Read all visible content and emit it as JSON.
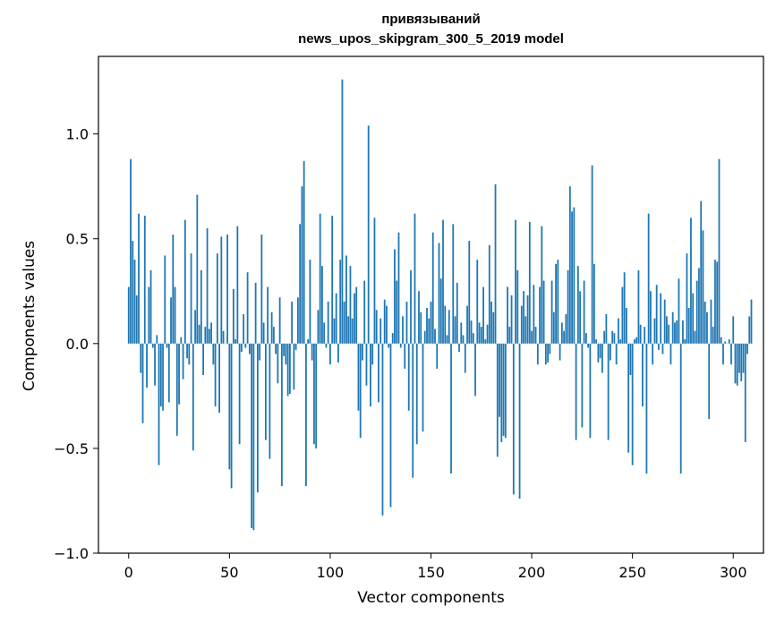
{
  "chart_data": {
    "type": "bar",
    "title": "привязываний",
    "subtitle": "news_upos_skipgram_300_5_2019 model",
    "xlabel": "Vector components",
    "ylabel": "Components values",
    "xlim": [
      -15,
      315
    ],
    "ylim": [
      -1.0,
      1.37
    ],
    "xticks": [
      0,
      50,
      100,
      150,
      200,
      250,
      300
    ],
    "yticks": [
      -1.0,
      -0.5,
      0.0,
      0.5,
      1.0
    ],
    "xtick_labels": [
      "0",
      "50",
      "100",
      "150",
      "200",
      "250",
      "300"
    ],
    "ytick_labels": [
      "−1.0",
      "−0.5",
      "0.0",
      "0.5",
      "1.0"
    ],
    "grid": false,
    "bar_color": "#1f77b4",
    "values": [
      0.27,
      0.88,
      0.49,
      0.4,
      0.23,
      0.62,
      -0.14,
      -0.38,
      0.61,
      -0.21,
      0.27,
      0.35,
      -0.02,
      -0.2,
      0.04,
      -0.58,
      -0.3,
      -0.32,
      0.42,
      -0.02,
      -0.28,
      0.22,
      0.52,
      0.27,
      -0.44,
      -0.29,
      0.03,
      -0.17,
      0.59,
      -0.07,
      -0.1,
      0.43,
      -0.51,
      0.16,
      0.71,
      0.09,
      0.35,
      -0.15,
      0.08,
      0.55,
      0.07,
      0.1,
      -0.1,
      -0.3,
      0.43,
      -0.33,
      0.51,
      0.06,
      0.0,
      0.52,
      -0.6,
      -0.69,
      0.26,
      0.02,
      0.56,
      -0.48,
      -0.04,
      0.14,
      -0.02,
      0.34,
      -0.05,
      -0.88,
      -0.89,
      0.29,
      -0.71,
      -0.08,
      0.52,
      0.1,
      -0.46,
      0.27,
      -0.55,
      0.15,
      0.08,
      -0.05,
      -0.19,
      0.22,
      -0.68,
      -0.06,
      -0.1,
      -0.25,
      -0.24,
      0.2,
      -0.22,
      -0.03,
      0.22,
      0.57,
      0.75,
      0.87,
      -0.68,
      0.02,
      0.4,
      -0.08,
      -0.48,
      -0.5,
      0.16,
      0.62,
      0.37,
      0.1,
      -0.02,
      0.2,
      -0.1,
      0.61,
      0.12,
      0.24,
      -0.09,
      0.4,
      1.26,
      0.2,
      0.42,
      0.13,
      0.37,
      0.12,
      0.24,
      0.27,
      -0.32,
      -0.45,
      -0.08,
      0.3,
      -0.2,
      1.04,
      -0.3,
      -0.1,
      0.6,
      0.16,
      -0.28,
      0.12,
      -0.82,
      0.21,
      0.18,
      -0.02,
      -0.78,
      0.05,
      0.45,
      0.3,
      0.53,
      -0.02,
      0.13,
      -0.12,
      0.2,
      -0.32,
      0.35,
      -0.64,
      0.62,
      -0.48,
      0.25,
      0.15,
      -0.42,
      0.06,
      0.17,
      0.12,
      0.2,
      0.53,
      0.07,
      -0.12,
      0.48,
      0.31,
      0.59,
      0.18,
      0.04,
      0.16,
      -0.62,
      0.57,
      0.13,
      0.29,
      -0.04,
      0.1,
      0.04,
      -0.14,
      0.18,
      0.49,
      0.11,
      0.05,
      -0.25,
      0.4,
      0.1,
      0.08,
      0.27,
      0.02,
      0.09,
      0.47,
      0.2,
      0.15,
      0.76,
      -0.54,
      -0.35,
      -0.47,
      -0.44,
      -0.45,
      0.27,
      0.08,
      0.23,
      -0.72,
      0.59,
      0.35,
      -0.74,
      0.18,
      0.25,
      0.13,
      0.23,
      0.58,
      0.06,
      0.28,
      0.08,
      -0.1,
      0.27,
      0.56,
      0.3,
      -0.1,
      -0.09,
      -0.05,
      0.3,
      0.15,
      0.38,
      0.4,
      -0.08,
      0.1,
      0.06,
      0.14,
      0.35,
      0.75,
      0.63,
      0.65,
      -0.46,
      0.37,
      0.25,
      -0.4,
      0.3,
      0.05,
      -0.02,
      -0.45,
      0.85,
      0.38,
      0.02,
      -0.09,
      -0.07,
      -0.14,
      0.06,
      0.14,
      -0.46,
      -0.08,
      0.06,
      0.05,
      -0.1,
      0.12,
      0.02,
      0.27,
      0.34,
      0.17,
      -0.52,
      -0.15,
      -0.58,
      0.02,
      0.03,
      0.35,
      0.09,
      -0.3,
      0.08,
      -0.62,
      0.62,
      0.25,
      -0.1,
      0.12,
      0.28,
      -0.03,
      0.24,
      -0.05,
      0.21,
      0.13,
      0.09,
      -0.1,
      0.15,
      0.1,
      0.11,
      0.31,
      -0.62,
      0.11,
      0.02,
      0.43,
      0.17,
      0.6,
      0.24,
      0.06,
      0.3,
      0.36,
      0.68,
      0.54,
      0.2,
      0.15,
      -0.36,
      0.21,
      0.08,
      0.4,
      0.39,
      0.88,
      0.03,
      -0.1,
      0.01,
      0.0,
      0.02,
      -0.1,
      0.13,
      -0.19,
      -0.2,
      -0.14,
      -0.18,
      -0.14,
      -0.47,
      -0.05,
      0.13,
      0.21
    ]
  }
}
